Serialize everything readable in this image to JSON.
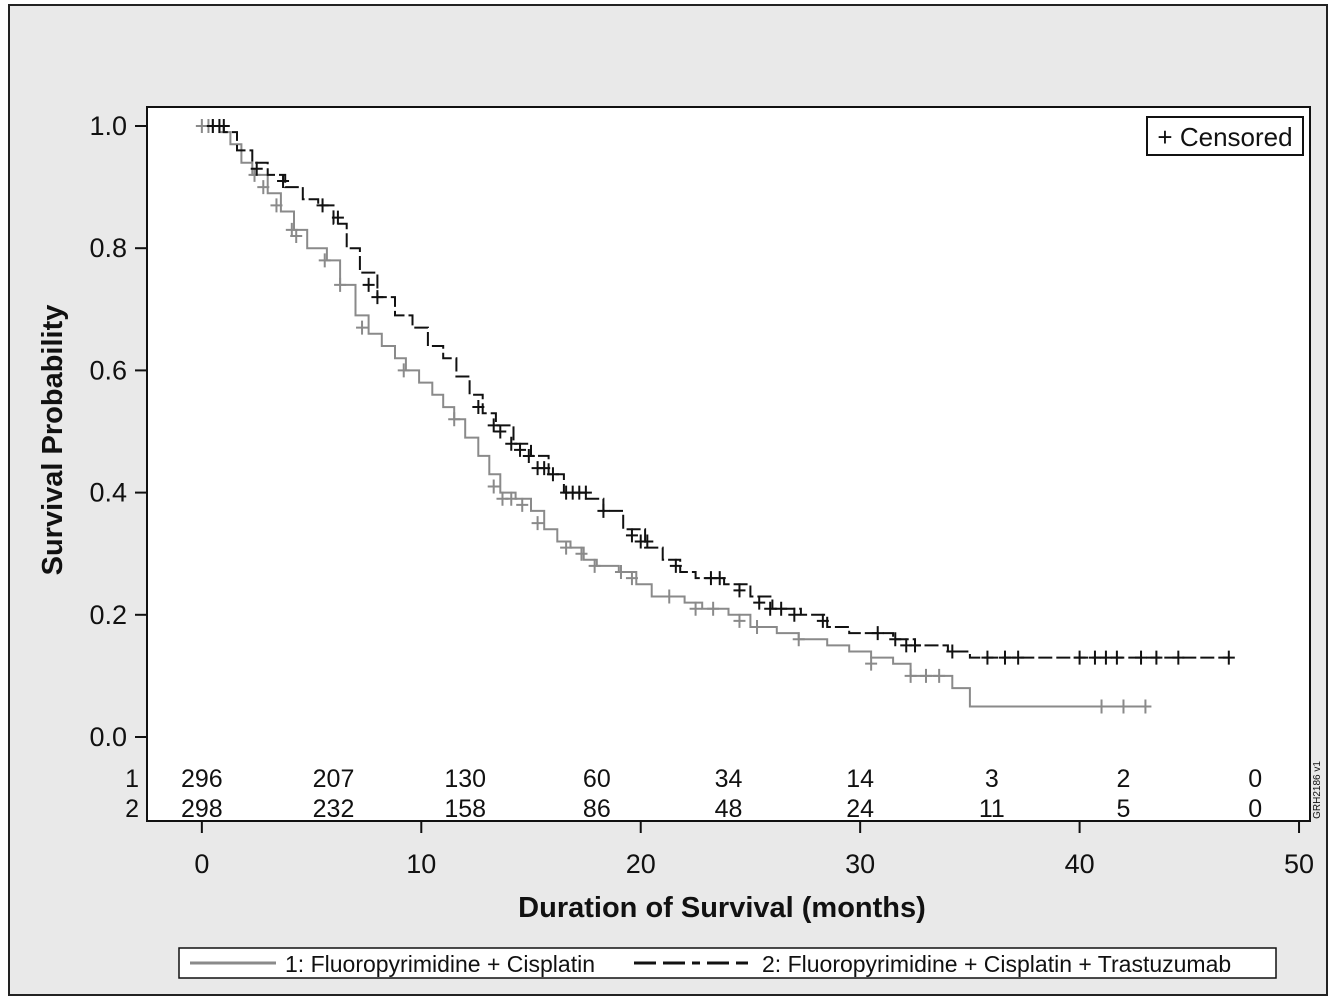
{
  "chart_data": {
    "type": "line",
    "subtype": "kaplan-meier",
    "xlabel": "Duration of Survival (months)",
    "ylabel": "Survival Probability",
    "xlim": [
      -2.5,
      50.5
    ],
    "ylim": [
      0,
      1.0
    ],
    "xticks": [
      "0",
      "10",
      "20",
      "30",
      "40",
      "50"
    ],
    "yticks": [
      "0.0",
      "0.2",
      "0.4",
      "0.6",
      "0.8",
      "1.0"
    ],
    "censored_label": "+ Censored",
    "legend_placement": "bottom",
    "grid": false,
    "colors": {
      "series1": "#8a8a8a",
      "series2": "#111111",
      "background": "#e9e9e9",
      "plot": "#ffffff"
    },
    "series": [
      {
        "name": "1: Fluoropyrimidine + Cisplatin",
        "risk_label": "1",
        "style": "solid",
        "steps": [
          [
            0,
            1.0
          ],
          [
            0.8,
            0.99
          ],
          [
            1.3,
            0.97
          ],
          [
            1.8,
            0.94
          ],
          [
            2.3,
            0.92
          ],
          [
            3.0,
            0.89
          ],
          [
            3.6,
            0.86
          ],
          [
            4.2,
            0.83
          ],
          [
            4.8,
            0.8
          ],
          [
            5.3,
            0.8
          ],
          [
            5.7,
            0.78
          ],
          [
            6.3,
            0.74
          ],
          [
            7.0,
            0.69
          ],
          [
            7.6,
            0.66
          ],
          [
            8.2,
            0.64
          ],
          [
            8.8,
            0.62
          ],
          [
            9.3,
            0.6
          ],
          [
            9.9,
            0.58
          ],
          [
            10.5,
            0.56
          ],
          [
            11.0,
            0.54
          ],
          [
            11.5,
            0.52
          ],
          [
            12.0,
            0.49
          ],
          [
            12.6,
            0.46
          ],
          [
            13.1,
            0.43
          ],
          [
            13.6,
            0.4
          ],
          [
            14.3,
            0.39
          ],
          [
            15.0,
            0.37
          ],
          [
            15.6,
            0.34
          ],
          [
            16.2,
            0.32
          ],
          [
            16.8,
            0.31
          ],
          [
            17.4,
            0.29
          ],
          [
            18.0,
            0.28
          ],
          [
            19.0,
            0.27
          ],
          [
            19.8,
            0.25
          ],
          [
            20.5,
            0.23
          ],
          [
            21.3,
            0.23
          ],
          [
            22.0,
            0.22
          ],
          [
            22.8,
            0.21
          ],
          [
            24.0,
            0.2
          ],
          [
            25.0,
            0.18
          ],
          [
            26.2,
            0.17
          ],
          [
            27.2,
            0.16
          ],
          [
            28.5,
            0.15
          ],
          [
            29.5,
            0.14
          ],
          [
            30.5,
            0.13
          ],
          [
            31.5,
            0.12
          ],
          [
            32.3,
            0.1
          ],
          [
            34.2,
            0.08
          ],
          [
            35.0,
            0.05
          ],
          [
            43.2,
            0.05
          ]
        ],
        "censored": [
          [
            0,
            1.0
          ],
          [
            0.3,
            1.0
          ],
          [
            0.5,
            1.0
          ],
          [
            2.4,
            0.92
          ],
          [
            2.8,
            0.9
          ],
          [
            3.4,
            0.87
          ],
          [
            4.1,
            0.83
          ],
          [
            4.3,
            0.82
          ],
          [
            5.6,
            0.78
          ],
          [
            6.3,
            0.74
          ],
          [
            7.3,
            0.67
          ],
          [
            9.2,
            0.6
          ],
          [
            11.5,
            0.52
          ],
          [
            13.3,
            0.41
          ],
          [
            13.7,
            0.39
          ],
          [
            14.1,
            0.39
          ],
          [
            14.6,
            0.38
          ],
          [
            15.3,
            0.35
          ],
          [
            16.6,
            0.31
          ],
          [
            17.3,
            0.3
          ],
          [
            17.9,
            0.28
          ],
          [
            19.1,
            0.27
          ],
          [
            19.6,
            0.26
          ],
          [
            21.3,
            0.23
          ],
          [
            22.5,
            0.21
          ],
          [
            23.3,
            0.21
          ],
          [
            24.5,
            0.19
          ],
          [
            25.3,
            0.18
          ],
          [
            27.2,
            0.16
          ],
          [
            30.5,
            0.12
          ],
          [
            32.3,
            0.1
          ],
          [
            33.0,
            0.1
          ],
          [
            33.6,
            0.1
          ],
          [
            41.0,
            0.05
          ],
          [
            42.0,
            0.05
          ],
          [
            43.0,
            0.05
          ]
        ],
        "at_risk": [
          296,
          207,
          130,
          60,
          34,
          14,
          3,
          2,
          0
        ]
      },
      {
        "name": "2: Fluoropyrimidine + Cisplatin + Trastuzumab",
        "risk_label": "2",
        "style": "dashed",
        "steps": [
          [
            0,
            1.0
          ],
          [
            1.0,
            0.99
          ],
          [
            1.6,
            0.96
          ],
          [
            2.3,
            0.94
          ],
          [
            3.0,
            0.92
          ],
          [
            3.8,
            0.9
          ],
          [
            4.6,
            0.88
          ],
          [
            5.3,
            0.87
          ],
          [
            6.0,
            0.84
          ],
          [
            6.6,
            0.8
          ],
          [
            7.2,
            0.76
          ],
          [
            8.0,
            0.72
          ],
          [
            8.8,
            0.69
          ],
          [
            9.6,
            0.67
          ],
          [
            10.3,
            0.64
          ],
          [
            11.0,
            0.62
          ],
          [
            11.6,
            0.59
          ],
          [
            12.2,
            0.56
          ],
          [
            12.8,
            0.53
          ],
          [
            13.4,
            0.51
          ],
          [
            14.2,
            0.48
          ],
          [
            15.0,
            0.46
          ],
          [
            15.8,
            0.43
          ],
          [
            16.5,
            0.4
          ],
          [
            17.5,
            0.39
          ],
          [
            18.3,
            0.37
          ],
          [
            19.2,
            0.34
          ],
          [
            20.2,
            0.31
          ],
          [
            21.0,
            0.29
          ],
          [
            21.8,
            0.27
          ],
          [
            22.5,
            0.26
          ],
          [
            23.8,
            0.25
          ],
          [
            25.0,
            0.23
          ],
          [
            26.0,
            0.21
          ],
          [
            27.3,
            0.2
          ],
          [
            28.5,
            0.18
          ],
          [
            29.5,
            0.17
          ],
          [
            31.5,
            0.16
          ],
          [
            32.5,
            0.15
          ],
          [
            34.0,
            0.14
          ],
          [
            35.0,
            0.13
          ],
          [
            46.8,
            0.13
          ]
        ],
        "censored": [
          [
            0.5,
            1.0
          ],
          [
            0.8,
            1.0
          ],
          [
            1.0,
            1.0
          ],
          [
            2.5,
            0.93
          ],
          [
            3.7,
            0.91
          ],
          [
            5.5,
            0.87
          ],
          [
            6.2,
            0.85
          ],
          [
            7.6,
            0.74
          ],
          [
            8.0,
            0.72
          ],
          [
            12.6,
            0.54
          ],
          [
            13.3,
            0.51
          ],
          [
            13.6,
            0.5
          ],
          [
            14.1,
            0.48
          ],
          [
            14.5,
            0.47
          ],
          [
            14.9,
            0.46
          ],
          [
            15.3,
            0.44
          ],
          [
            15.6,
            0.44
          ],
          [
            16.0,
            0.43
          ],
          [
            16.6,
            0.4
          ],
          [
            16.9,
            0.4
          ],
          [
            17.2,
            0.4
          ],
          [
            17.5,
            0.4
          ],
          [
            18.3,
            0.37
          ],
          [
            19.6,
            0.33
          ],
          [
            20.0,
            0.32
          ],
          [
            20.3,
            0.32
          ],
          [
            21.6,
            0.28
          ],
          [
            23.2,
            0.26
          ],
          [
            23.6,
            0.26
          ],
          [
            24.5,
            0.24
          ],
          [
            25.4,
            0.22
          ],
          [
            25.9,
            0.21
          ],
          [
            26.4,
            0.21
          ],
          [
            27.0,
            0.2
          ],
          [
            28.3,
            0.19
          ],
          [
            30.8,
            0.17
          ],
          [
            31.6,
            0.16
          ],
          [
            32.1,
            0.15
          ],
          [
            32.5,
            0.15
          ],
          [
            34.2,
            0.14
          ],
          [
            35.8,
            0.13
          ],
          [
            36.6,
            0.13
          ],
          [
            37.2,
            0.13
          ],
          [
            40.0,
            0.13
          ],
          [
            40.7,
            0.13
          ],
          [
            41.2,
            0.13
          ],
          [
            41.7,
            0.13
          ],
          [
            42.8,
            0.13
          ],
          [
            43.5,
            0.13
          ],
          [
            44.5,
            0.13
          ],
          [
            46.8,
            0.13
          ]
        ],
        "at_risk": [
          298,
          232,
          158,
          86,
          48,
          24,
          11,
          5,
          0
        ]
      }
    ],
    "at_risk_times": [
      0,
      6,
      12,
      18,
      24,
      30,
      36,
      42,
      48
    ]
  },
  "figure_code": "GRH2186 v1"
}
